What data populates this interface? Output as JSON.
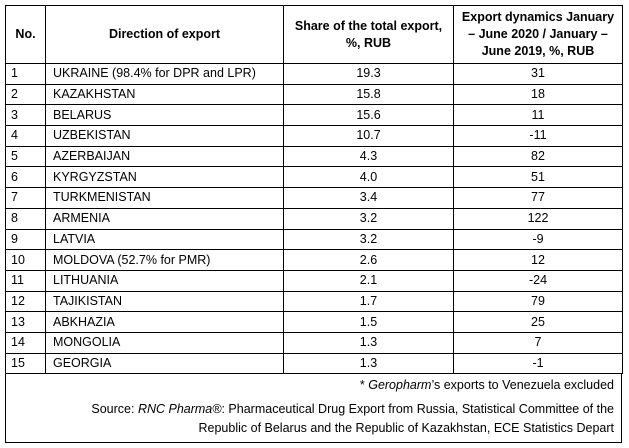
{
  "table": {
    "headers": {
      "no": "No.",
      "direction": "Direction of export",
      "share": "Share of the total export, %, RUB",
      "dynamics": "Export dynamics January – June 2020 / January – June 2019, %, RUB"
    },
    "rows": [
      {
        "no": "1",
        "direction": "UKRAINE (98.4% for DPR and LPR)",
        "share": "19.3",
        "dynamics": "31"
      },
      {
        "no": "2",
        "direction": "KAZAKHSTAN",
        "share": "15.8",
        "dynamics": "18"
      },
      {
        "no": "3",
        "direction": "BELARUS",
        "share": "15.6",
        "dynamics": "11"
      },
      {
        "no": "4",
        "direction": "UZBEKISTAN",
        "share": "10.7",
        "dynamics": "-11"
      },
      {
        "no": "5",
        "direction": "AZERBAIJAN",
        "share": "4.3",
        "dynamics": "82"
      },
      {
        "no": "6",
        "direction": "KYRGYZSTAN",
        "share": "4.0",
        "dynamics": "51"
      },
      {
        "no": "7",
        "direction": "TURKMENISTAN",
        "share": "3.4",
        "dynamics": "77"
      },
      {
        "no": "8",
        "direction": "ARMENIA",
        "share": "3.2",
        "dynamics": "122"
      },
      {
        "no": "9",
        "direction": "LATVIA",
        "share": "3.2",
        "dynamics": "-9"
      },
      {
        "no": "10",
        "direction": "MOLDOVA (52.7% for PMR)",
        "share": "2.6",
        "dynamics": "12"
      },
      {
        "no": "11",
        "direction": "LITHUANIA",
        "share": "2.1",
        "dynamics": "-24"
      },
      {
        "no": "12",
        "direction": "TAJIKISTAN",
        "share": "1.7",
        "dynamics": "79"
      },
      {
        "no": "13",
        "direction": "ABKHAZIA",
        "share": "1.5",
        "dynamics": "25"
      },
      {
        "no": "14",
        "direction": "MONGOLIA",
        "share": "1.3",
        "dynamics": "7"
      },
      {
        "no": "15",
        "direction": "GEORGIA",
        "share": "1.3",
        "dynamics": "-1"
      }
    ]
  },
  "footnote": {
    "prefix": "* ",
    "company": "Geropharm",
    "text": "’s exports to Venezuela excluded"
  },
  "source": {
    "prefix": "Source: ",
    "publisher": "RNC Pharma®",
    "line1_rest": ": Pharmaceutical Drug Export from Russia, Statistical Committee of the",
    "line2": "Republic of Belarus and the Republic of Kazakhstan, ECE Statistics Depart"
  }
}
